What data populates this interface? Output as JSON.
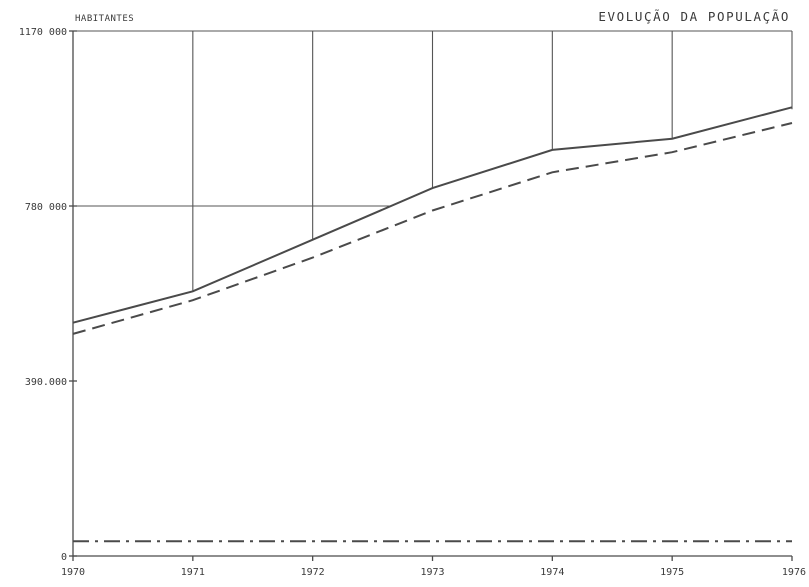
{
  "chart_data": {
    "type": "line",
    "title": "EVOLUÇÃO DA POPULAÇÃO",
    "ylabel": "HABITANTES",
    "xlabel": "",
    "x": [
      1970,
      1971,
      1972,
      1973,
      1974,
      1975,
      1976
    ],
    "x_tick_labels": [
      "1970",
      "1971",
      "1972",
      "1973",
      "1974",
      "1975",
      "1976"
    ],
    "y_ticks": [
      0,
      390000,
      780000,
      1170000
    ],
    "y_tick_labels": [
      "0",
      "390.000",
      "780 000",
      "1170 000"
    ],
    "ylim": [
      0,
      1170000
    ],
    "xlim": [
      1970,
      1976
    ],
    "grid": "partial, vertical lines above the solid series and a horizontal line at 780 000",
    "legend": "none",
    "series": [
      {
        "style": "solid",
        "values": [
          520000,
          590000,
          705000,
          820000,
          905000,
          930000,
          1000000
        ]
      },
      {
        "style": "dashed",
        "values": [
          495000,
          570000,
          665000,
          770000,
          855000,
          900000,
          965000
        ]
      },
      {
        "style": "dash-dot",
        "values": [
          33000,
          33000,
          33000,
          33000,
          33000,
          33000,
          33000
        ]
      }
    ],
    "colors": {
      "ink": "#4a4a4a",
      "background": "#ffffff"
    }
  }
}
